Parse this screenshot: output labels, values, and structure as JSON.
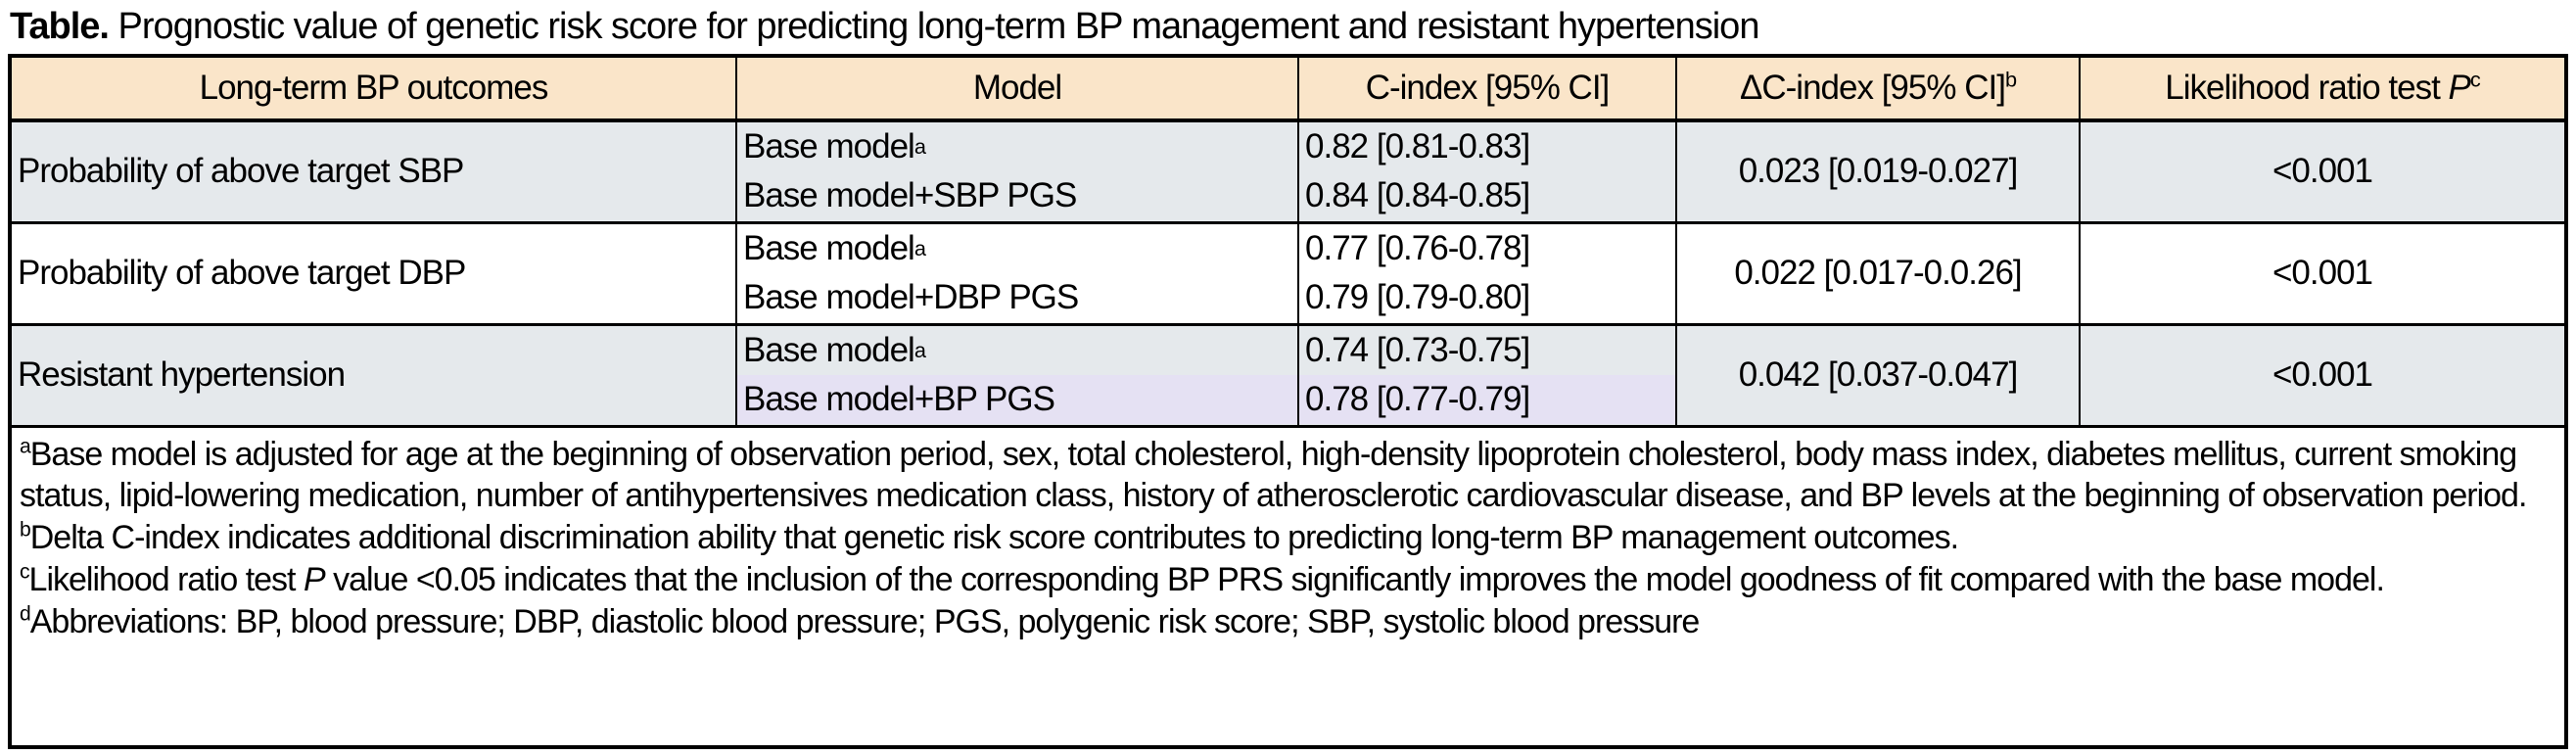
{
  "title": {
    "label": "Table.",
    "text": " Prognostic value of genetic risk score for predicting long-term BP management and resistant hypertension"
  },
  "colors": {
    "header_bg": "#fae5c9",
    "shaded_row_bg": "#e5e9ec",
    "highlight_bg": "#e5e1f3",
    "border": "#000000"
  },
  "table": {
    "headers": {
      "outcomes": "Long-term BP outcomes",
      "model": "Model",
      "c_index": "C-index [95% CI]",
      "delta_c_index": "ΔC-index [95% CI]",
      "delta_c_index_sup": "b",
      "lrt_pre": "Likelihood ratio test ",
      "lrt_italic": "P",
      "lrt_sup": "c"
    },
    "rows": [
      {
        "outcome": "Probability of above target SBP",
        "model1": "Base model",
        "model1_sup": "a",
        "model2": "Base model+SBP PGS",
        "c_index1": "0.82 [0.81-0.83]",
        "c_index2": "0.84 [0.84-0.85]",
        "delta": "0.023 [0.019-0.027]",
        "p_value": "<0.001"
      },
      {
        "outcome": "Probability of above target DBP",
        "model1": "Base model",
        "model1_sup": "a",
        "model2": "Base model+DBP PGS",
        "c_index1": "0.77 [0.76-0.78]",
        "c_index2": "0.79 [0.79-0.80]",
        "delta": "0.022 [0.017-0.0.26]",
        "p_value": "<0.001"
      },
      {
        "outcome": "Resistant hypertension",
        "model1": "Base model",
        "model1_sup": "a",
        "model2": "Base model+BP PGS",
        "c_index1": "0.74 [0.73-0.75]",
        "c_index2": "0.78 [0.77-0.79]",
        "delta": "0.042 [0.037-0.047]",
        "p_value": "<0.001"
      }
    ],
    "footnotes": [
      {
        "marker": "a",
        "text": "Base model is adjusted for age at the beginning of observation period, sex, total cholesterol, high-density lipoprotein cholesterol, body mass index, diabetes mellitus, current smoking status, lipid-lowering medication, number of antihypertensives medication class, history of atherosclerotic cardiovascular disease, and BP levels at the beginning of observation period."
      },
      {
        "marker": "b",
        "text": "Delta C-index indicates additional discrimination ability that genetic risk score contributes to predicting long-term BP management outcomes."
      },
      {
        "marker": "c",
        "pre": "Likelihood ratio test ",
        "italic": "P",
        "post": " value <0.05 indicates that the inclusion of the corresponding BP PRS significantly improves the model goodness of fit compared with the base model."
      },
      {
        "marker": "d",
        "text": "Abbreviations: BP, blood pressure; DBP, diastolic blood pressure; PGS, polygenic risk score; SBP, systolic blood pressure"
      }
    ]
  }
}
